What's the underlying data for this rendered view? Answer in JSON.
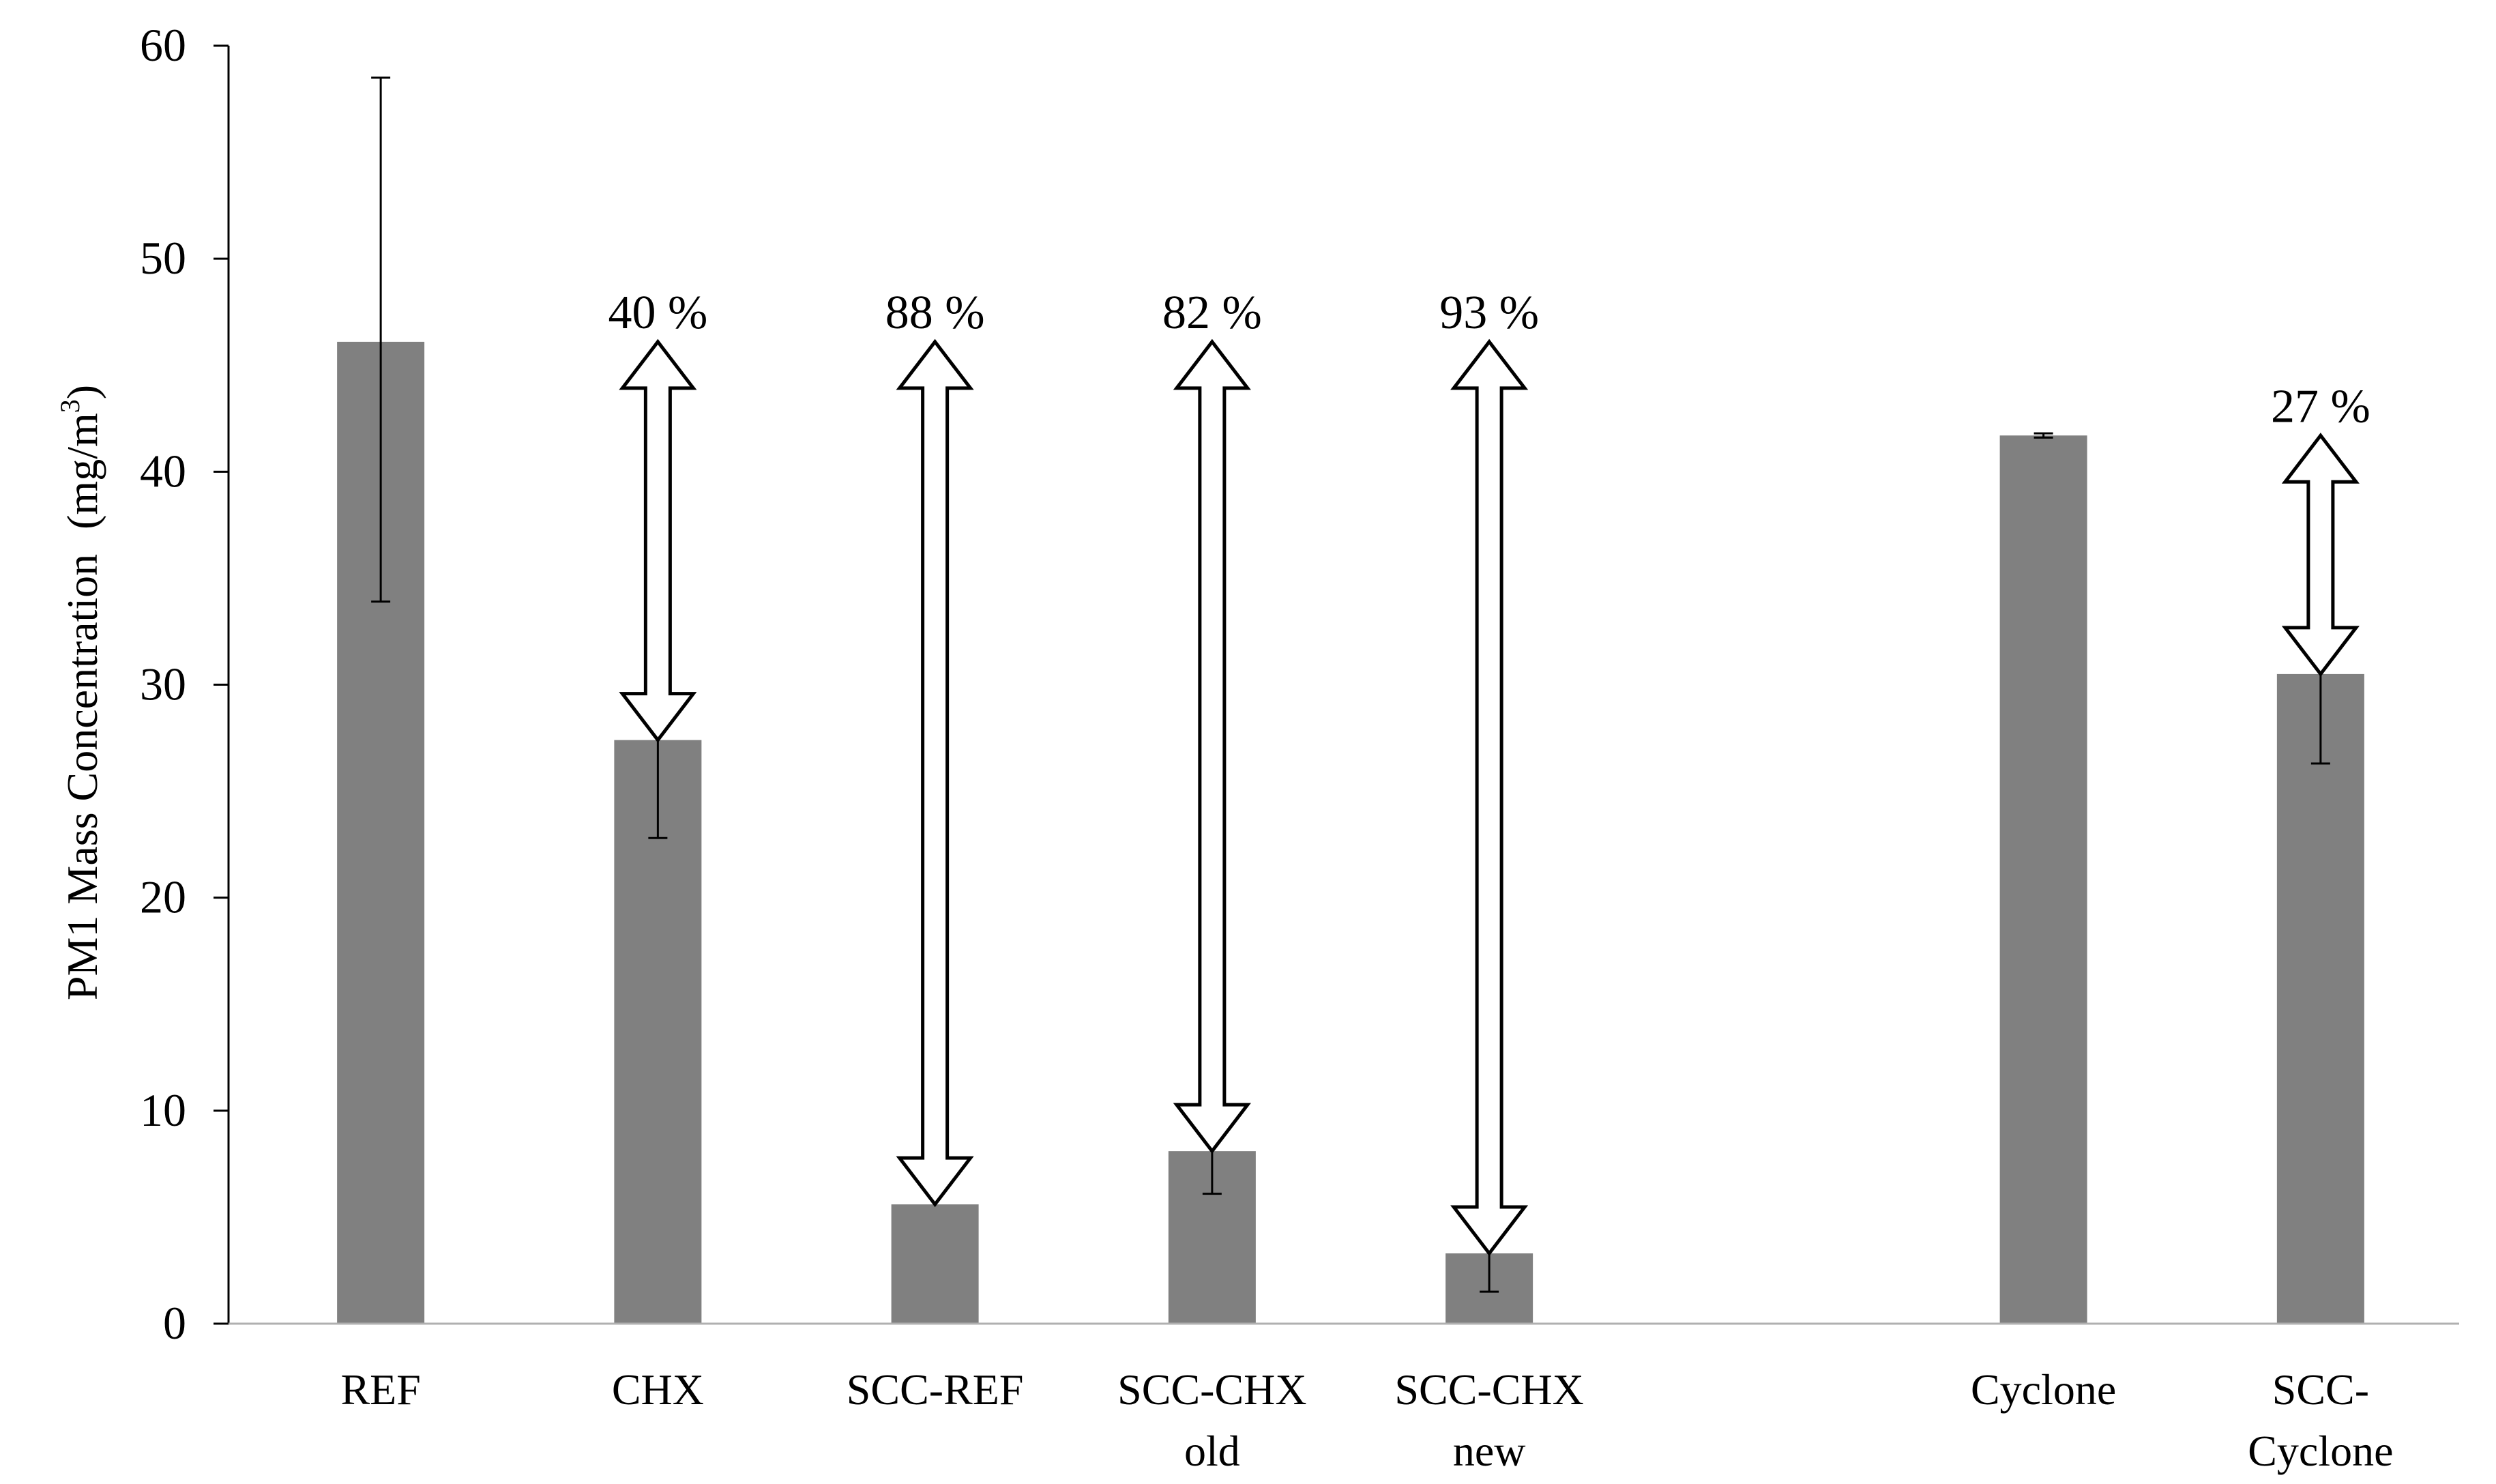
{
  "chart_data": {
    "type": "bar",
    "title": "",
    "xlabel": "",
    "ylabel": "PM1 Mass Concentration",
    "ylabel_unit_prefix": "(mg/m",
    "ylabel_unit_sup": "3",
    "ylabel_unit_suffix": ")",
    "ylim": [
      0,
      60
    ],
    "yticks": [
      "0",
      "10",
      "20",
      "30",
      "40",
      "50",
      "60"
    ],
    "grid": false,
    "legend": "none",
    "bar_color": "#808080",
    "categories": [
      {
        "lines": [
          "REF"
        ],
        "value": 46.1,
        "error": [
          33.9,
          58.5
        ],
        "reduction": null
      },
      {
        "lines": [
          "CHX"
        ],
        "value": 27.4,
        "error": [
          22.8,
          32.2
        ],
        "reduction": "40 %"
      },
      {
        "lines": [
          "SCC-REF"
        ],
        "value": 5.6,
        "error": null,
        "reduction": "88 %"
      },
      {
        "lines": [
          "SCC-CHX",
          "old"
        ],
        "value": 8.1,
        "error": [
          6.1,
          10.2
        ],
        "reduction": "82 %"
      },
      {
        "lines": [
          "SCC-CHX",
          "new"
        ],
        "value": 3.3,
        "error": [
          1.5,
          5.4
        ],
        "reduction": "93 %"
      },
      {
        "lines": [],
        "value": null,
        "error": null,
        "reduction": null
      },
      {
        "lines": [
          "Cyclone"
        ],
        "value": 41.7,
        "error": [
          41.6,
          41.8
        ],
        "reduction": null
      },
      {
        "lines": [
          "SCC-",
          "Cyclone"
        ],
        "value": 30.5,
        "error": [
          26.3,
          34.8
        ],
        "reduction": "27 %"
      }
    ],
    "arrows": [
      {
        "category": 1,
        "from": 46.1,
        "to": 27.4
      },
      {
        "category": 2,
        "from": 46.1,
        "to": 5.6
      },
      {
        "category": 3,
        "from": 46.1,
        "to": 8.1
      },
      {
        "category": 4,
        "from": 46.1,
        "to": 3.3
      },
      {
        "category": 7,
        "from": 41.7,
        "to": 30.5
      }
    ]
  }
}
